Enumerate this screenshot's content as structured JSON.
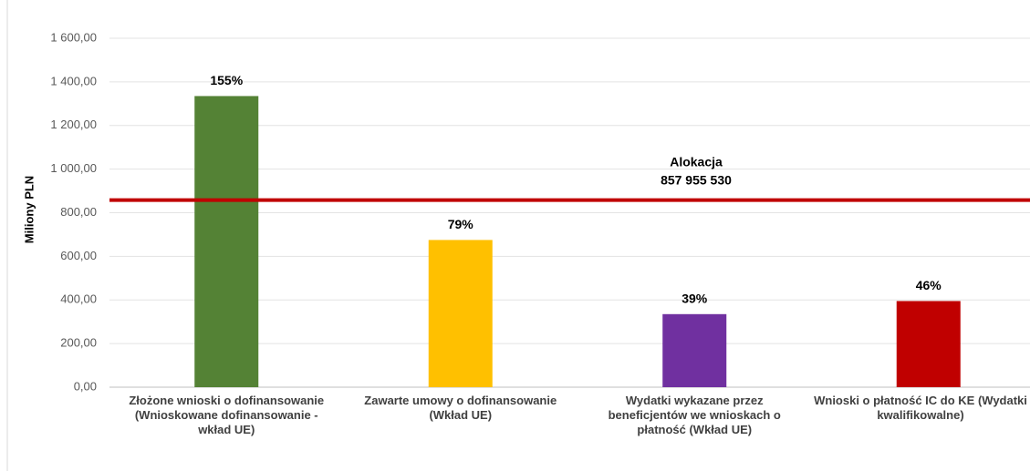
{
  "chart_data": {
    "type": "bar",
    "y_label": "Miliony PLN",
    "categories": [
      "Złożone wnioski o dofinansowanie (Wnioskowane dofinansowanie - wkład UE)",
      "Zawarte umowy o dofinansowanie (Wkład UE)",
      "Wydatki wykazane przez beneficjentów we wnioskach o płatność (Wkład UE)",
      "Wnioski o płatność IC do KE (Wydatki kwalifikowalne)"
    ],
    "values": [
      1335,
      675,
      335,
      395
    ],
    "colors": [
      "#548235",
      "#ffc000",
      "#7030a0",
      "#c00000"
    ],
    "percent_values": [
      155,
      79,
      39,
      46
    ],
    "percent_labels": [
      "155%",
      "79%",
      "39%",
      "46%"
    ],
    "reference_line": {
      "text": "Alokacja",
      "value": 857.95553,
      "label": "857 955 530",
      "color": "#c00000"
    },
    "ylim": [
      0,
      1600
    ],
    "yticks": [
      {
        "value": 0,
        "label": "0,00"
      },
      {
        "value": 200,
        "label": "200,00"
      },
      {
        "value": 400,
        "label": "400,00"
      },
      {
        "value": 600,
        "label": "600,00"
      },
      {
        "value": 800,
        "label": "800,00"
      },
      {
        "value": 1000,
        "label": "1 000,00"
      },
      {
        "value": 1200,
        "label": "1 200,00"
      },
      {
        "value": 1400,
        "label": "1 400,00"
      },
      {
        "value": 1600,
        "label": "1 600,00"
      }
    ],
    "grid": true
  }
}
